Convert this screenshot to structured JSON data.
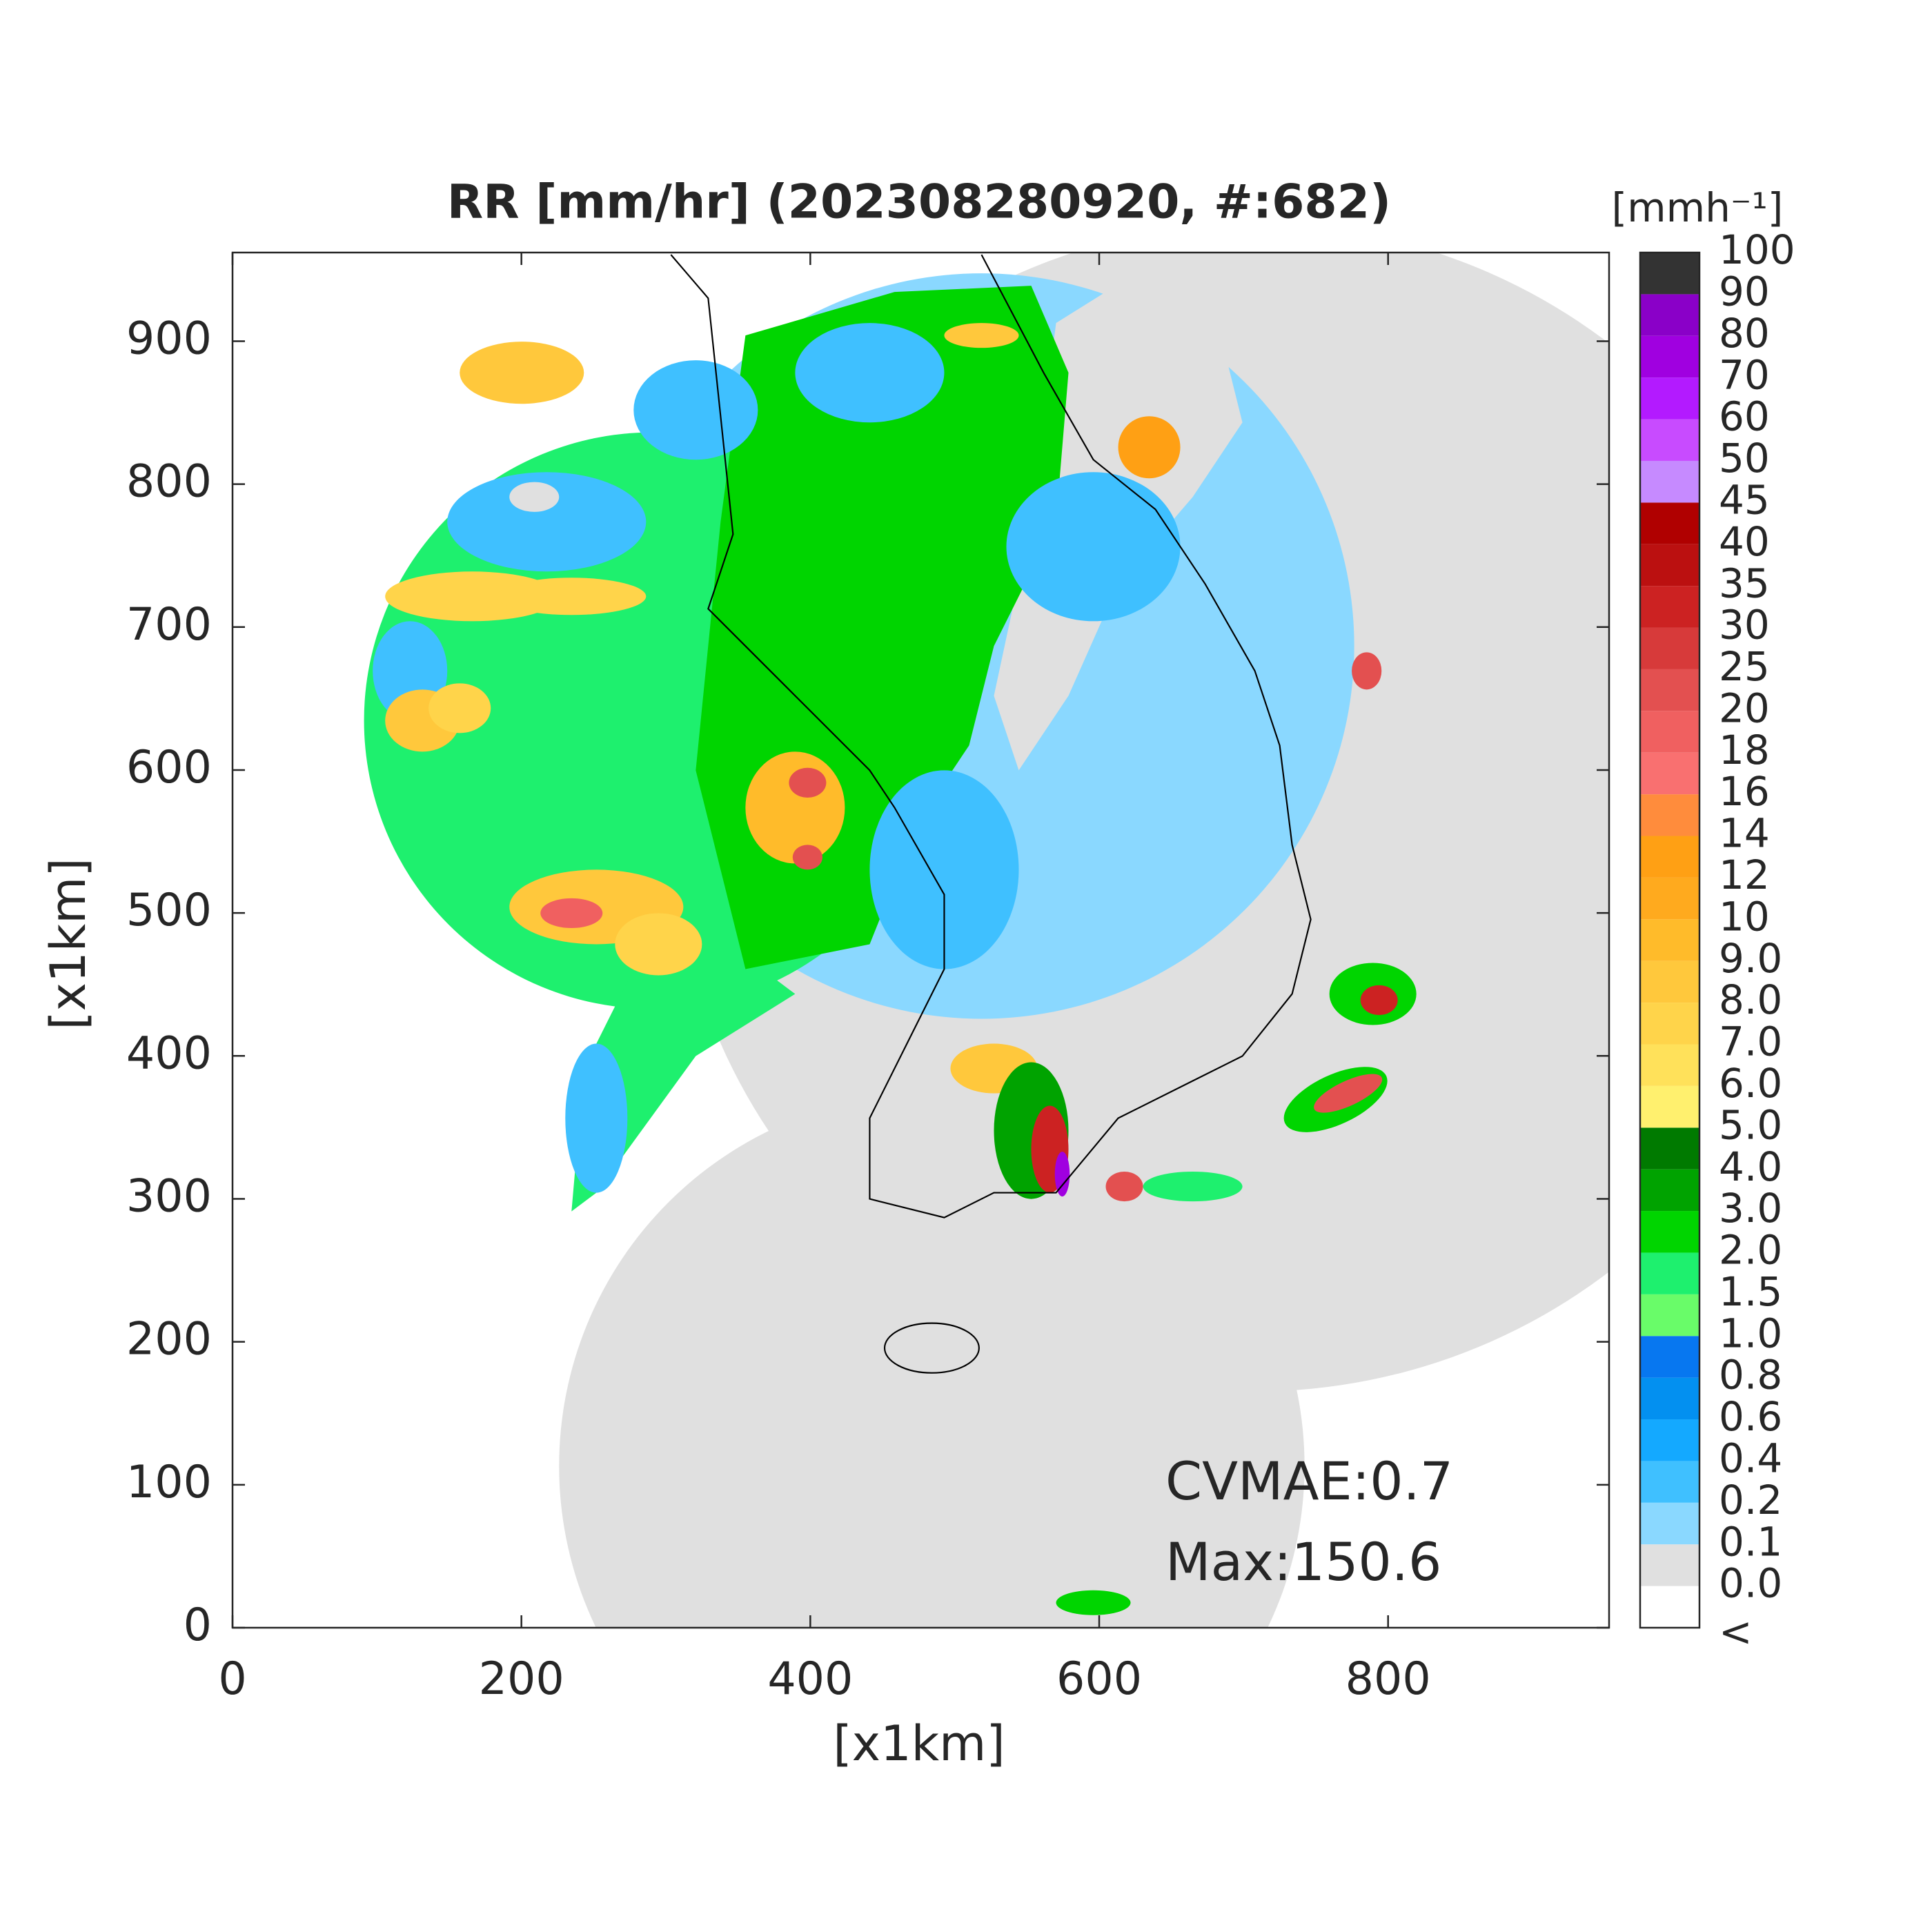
{
  "chart_data": {
    "type": "radar-map",
    "title": "RR [mm/hr] (202308280920, #:682)",
    "x_label": "[x1km]",
    "y_label": "[x1km]",
    "xlim": [
      0,
      953
    ],
    "ylim": [
      0,
      962
    ],
    "xticks": [
      0,
      200,
      400,
      600,
      800
    ],
    "yticks": [
      0,
      100,
      200,
      300,
      400,
      500,
      600,
      700,
      800,
      900
    ],
    "annotations": [
      "CVMAE:0.7",
      "Max:150.6"
    ],
    "colorbar": {
      "title": "[mmh⁻¹]",
      "labels": [
        "<",
        "0.0",
        "0.1",
        "0.2",
        "0.4",
        "0.6",
        "0.8",
        "1.0",
        "1.5",
        "2.0",
        "3.0",
        "4.0",
        "5.0",
        "6.0",
        "7.0",
        "8.0",
        "9.0",
        "10",
        "12",
        "14",
        "16",
        "18",
        "20",
        "25",
        "30",
        "35",
        "40",
        "45",
        "50",
        "60",
        "70",
        "80",
        "90",
        "100"
      ],
      "colors": [
        "#ffffff",
        "#e0e0e0",
        "#8ad8ff",
        "#3fc0ff",
        "#14a9ff",
        "#0390f0",
        "#0777f0",
        "#69fc69",
        "#1ef06e",
        "#00d500",
        "#00a300",
        "#007a00",
        "#fff06e",
        "#ffe15a",
        "#ffd44a",
        "#ffc83c",
        "#ffbb2a",
        "#ffaa1e",
        "#ffa014",
        "#ff8c3c",
        "#f97070",
        "#f06060",
        "#e35050",
        "#d73a3a",
        "#cc2222",
        "#bb1010",
        "#b00000",
        "#c68aff",
        "#c84bff",
        "#b31aff",
        "#a000e0",
        "#8a00c8",
        "#333333"
      ]
    }
  }
}
